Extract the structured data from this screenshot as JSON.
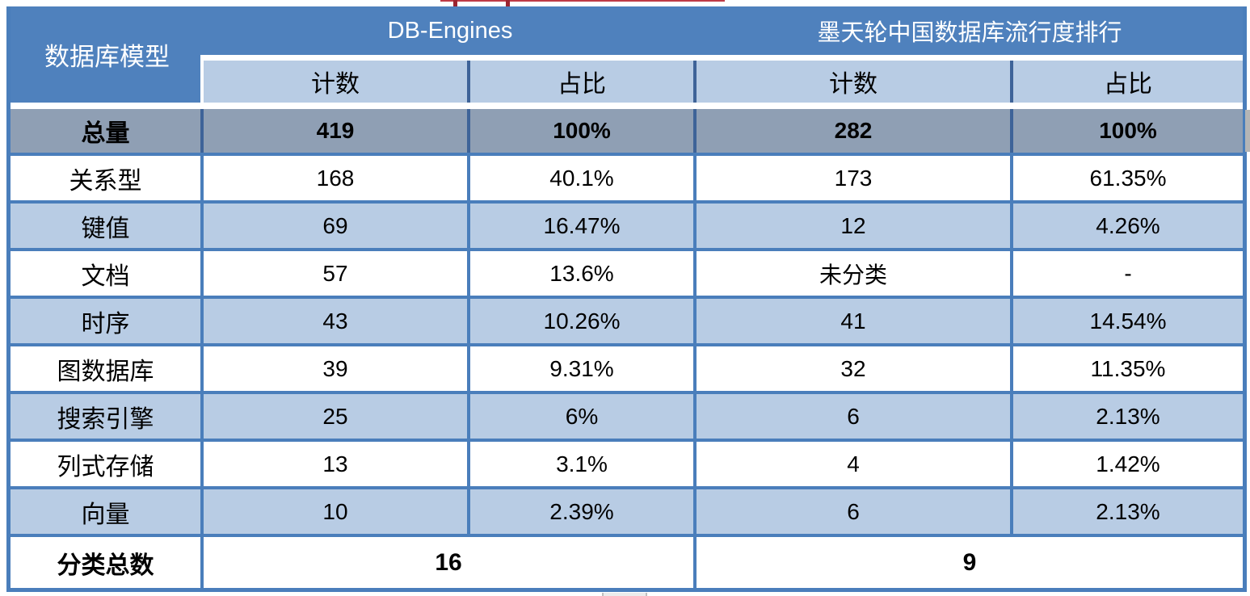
{
  "colors": {
    "header_blue": "#4F81BD",
    "row_light_blue": "#B8CCE4",
    "total_row_gray": "#8F9FB4",
    "border_blue": "#4A7EBB",
    "divider_dark": "#3E6398",
    "annotation_red": "#BE3A45"
  },
  "table": {
    "corner_header": "数据库模型",
    "groups": [
      {
        "title": "DB-Engines"
      },
      {
        "title": "墨天轮中国数据库流行度排行"
      }
    ],
    "sub_headers": [
      "计数",
      "占比",
      "计数",
      "占比"
    ],
    "total_row": {
      "label": "总量",
      "db_count": "419",
      "db_pct": "100%",
      "mt_count": "282",
      "mt_pct": "100%"
    },
    "rows": [
      {
        "label": "关系型",
        "db_count": "168",
        "db_pct": "40.1%",
        "mt_count": "173",
        "mt_pct": "61.35%"
      },
      {
        "label": "键值",
        "db_count": "69",
        "db_pct": "16.47%",
        "mt_count": "12",
        "mt_pct": "4.26%"
      },
      {
        "label": "文档",
        "db_count": "57",
        "db_pct": "13.6%",
        "mt_count": "未分类",
        "mt_pct": "-"
      },
      {
        "label": "时序",
        "db_count": "43",
        "db_pct": "10.26%",
        "mt_count": "41",
        "mt_pct": "14.54%"
      },
      {
        "label": "图数据库",
        "db_count": "39",
        "db_pct": "9.31%",
        "mt_count": "32",
        "mt_pct": "11.35%"
      },
      {
        "label": "搜索引擎",
        "db_count": "25",
        "db_pct": "6%",
        "mt_count": "6",
        "mt_pct": "2.13%"
      },
      {
        "label": "列式存储",
        "db_count": "13",
        "db_pct": "3.1%",
        "mt_count": "4",
        "mt_pct": "1.42%"
      },
      {
        "label": "向量",
        "db_count": "10",
        "db_pct": "2.39%",
        "mt_count": "6",
        "mt_pct": "2.13%"
      }
    ],
    "footer_row": {
      "label": "分类总数",
      "db_total": "16",
      "mt_total": "9"
    }
  },
  "chart_data": {
    "type": "table",
    "columns": [
      "数据库模型",
      "DB-Engines 计数",
      "DB-Engines 占比",
      "墨天轮中国数据库流行度排行 计数",
      "墨天轮中国数据库流行度排行 占比"
    ],
    "rows": [
      [
        "总量",
        "419",
        "100%",
        "282",
        "100%"
      ],
      [
        "关系型",
        "168",
        "40.1%",
        "173",
        "61.35%"
      ],
      [
        "键值",
        "69",
        "16.47%",
        "12",
        "4.26%"
      ],
      [
        "文档",
        "57",
        "13.6%",
        "未分类",
        "-"
      ],
      [
        "时序",
        "43",
        "10.26%",
        "41",
        "14.54%"
      ],
      [
        "图数据库",
        "39",
        "9.31%",
        "32",
        "11.35%"
      ],
      [
        "搜索引擎",
        "25",
        "6%",
        "6",
        "2.13%"
      ],
      [
        "列式存储",
        "13",
        "3.1%",
        "4",
        "1.42%"
      ],
      [
        "向量",
        "10",
        "2.39%",
        "6",
        "2.13%"
      ],
      [
        "分类总数",
        "16",
        "",
        "9",
        ""
      ]
    ]
  }
}
